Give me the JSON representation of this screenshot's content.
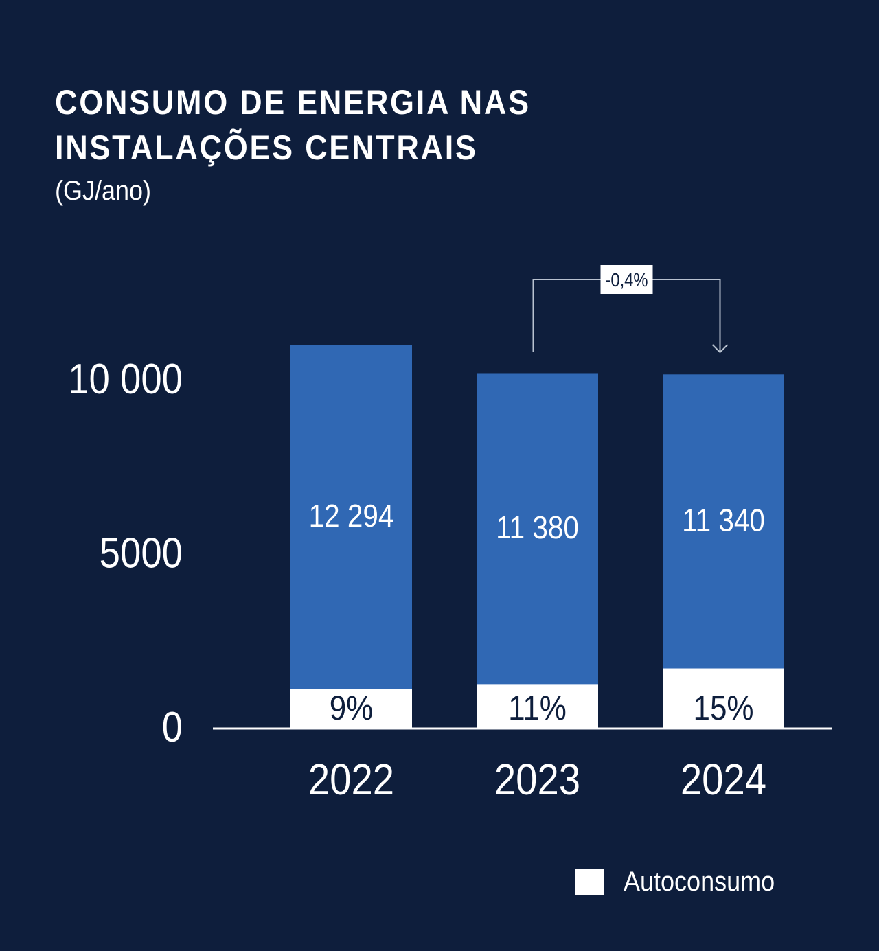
{
  "chart_data": {
    "type": "bar",
    "title": "CONSUMO DE ENERGIA NAS INSTALAÇÕES CENTRAIS",
    "title_lines": [
      "CONSUMO DE ENERGIA NAS",
      "INSTALAÇÕES CENTRAIS"
    ],
    "unit": "(GJ/ano)",
    "categories": [
      "2022",
      "2023",
      "2024"
    ],
    "values": [
      12294,
      11380,
      11340
    ],
    "value_labels": [
      "12 294",
      "11 380",
      "11 340"
    ],
    "autoconsumo_share_percent": [
      9,
      11,
      15
    ],
    "autoconsumo_labels": [
      "9%",
      "11%",
      "15%"
    ],
    "yticks": [
      0,
      5000,
      10000
    ],
    "ytick_labels": [
      "0",
      "5000",
      "10 000"
    ],
    "annotation": {
      "from": "2023",
      "to": "2024",
      "label": "-0,4%"
    },
    "legend": [
      {
        "name": "Autoconsumo",
        "color": "#ffffff"
      }
    ],
    "legend_position": "bottom-right",
    "grid": false,
    "colors": {
      "background": "#0e1e3c",
      "bar": "#3068b4",
      "autoconsumo": "#ffffff",
      "annotation_line": "#b8c2d0"
    }
  }
}
